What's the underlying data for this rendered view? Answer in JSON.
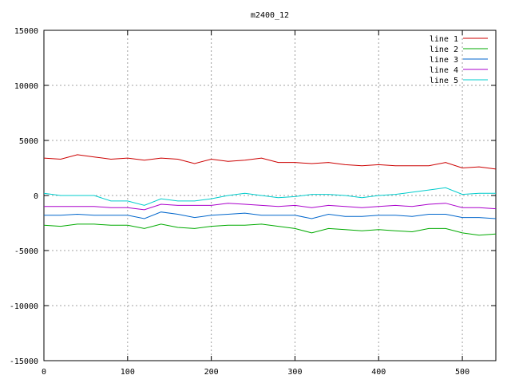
{
  "chart_data": {
    "type": "line",
    "title": "m2400_12",
    "xlabel": "",
    "ylabel": "",
    "xlim": [
      0,
      540
    ],
    "ylim": [
      -15000,
      15000
    ],
    "x_ticks": [
      "0",
      "100",
      "200",
      "300",
      "400",
      "500"
    ],
    "y_ticks": [
      "15000",
      "10000",
      "5000",
      "0",
      "-5000",
      "-10000",
      "-15000"
    ],
    "grid": true,
    "legend_position": "top-right",
    "x": [
      0,
      20,
      40,
      60,
      80,
      100,
      120,
      140,
      160,
      180,
      200,
      220,
      240,
      260,
      280,
      300,
      320,
      340,
      360,
      380,
      400,
      420,
      440,
      460,
      480,
      500,
      520,
      540
    ],
    "series": [
      {
        "name": "line 1",
        "color": "#cc0000",
        "values": [
          3400,
          3300,
          3700,
          3500,
          3300,
          3400,
          3200,
          3400,
          3300,
          2900,
          3300,
          3100,
          3200,
          3400,
          3000,
          3000,
          2900,
          3000,
          2800,
          2700,
          2800,
          2700,
          2700,
          2700,
          3000,
          2500,
          2600,
          2400
        ]
      },
      {
        "name": "line 2",
        "color": "#00aa00",
        "values": [
          -2700,
          -2800,
          -2600,
          -2600,
          -2700,
          -2700,
          -3000,
          -2600,
          -2900,
          -3000,
          -2800,
          -2700,
          -2700,
          -2600,
          -2800,
          -3000,
          -3400,
          -3000,
          -3100,
          -3200,
          -3100,
          -3200,
          -3300,
          -3000,
          -3000,
          -3400,
          -3600,
          -3500
        ]
      },
      {
        "name": "line 3",
        "color": "#0066cc",
        "values": [
          -1800,
          -1800,
          -1700,
          -1800,
          -1800,
          -1800,
          -2100,
          -1500,
          -1700,
          -2000,
          -1800,
          -1700,
          -1600,
          -1800,
          -1800,
          -1800,
          -2100,
          -1700,
          -1900,
          -1900,
          -1800,
          -1800,
          -1900,
          -1700,
          -1700,
          -2000,
          -2000,
          -2100
        ]
      },
      {
        "name": "line 4",
        "color": "#aa00cc",
        "values": [
          -1000,
          -1000,
          -1000,
          -1000,
          -1100,
          -1100,
          -1300,
          -800,
          -900,
          -900,
          -900,
          -700,
          -800,
          -900,
          -1000,
          -900,
          -1100,
          -900,
          -1000,
          -1100,
          -1000,
          -900,
          -1000,
          -800,
          -700,
          -1100,
          -1100,
          -1200
        ]
      },
      {
        "name": "line 5",
        "color": "#00cccc",
        "values": [
          200,
          0,
          0,
          0,
          -500,
          -500,
          -900,
          -300,
          -500,
          -500,
          -300,
          0,
          200,
          0,
          -200,
          -100,
          100,
          100,
          0,
          -200,
          0,
          100,
          300,
          500,
          700,
          100,
          200,
          200
        ]
      }
    ]
  }
}
